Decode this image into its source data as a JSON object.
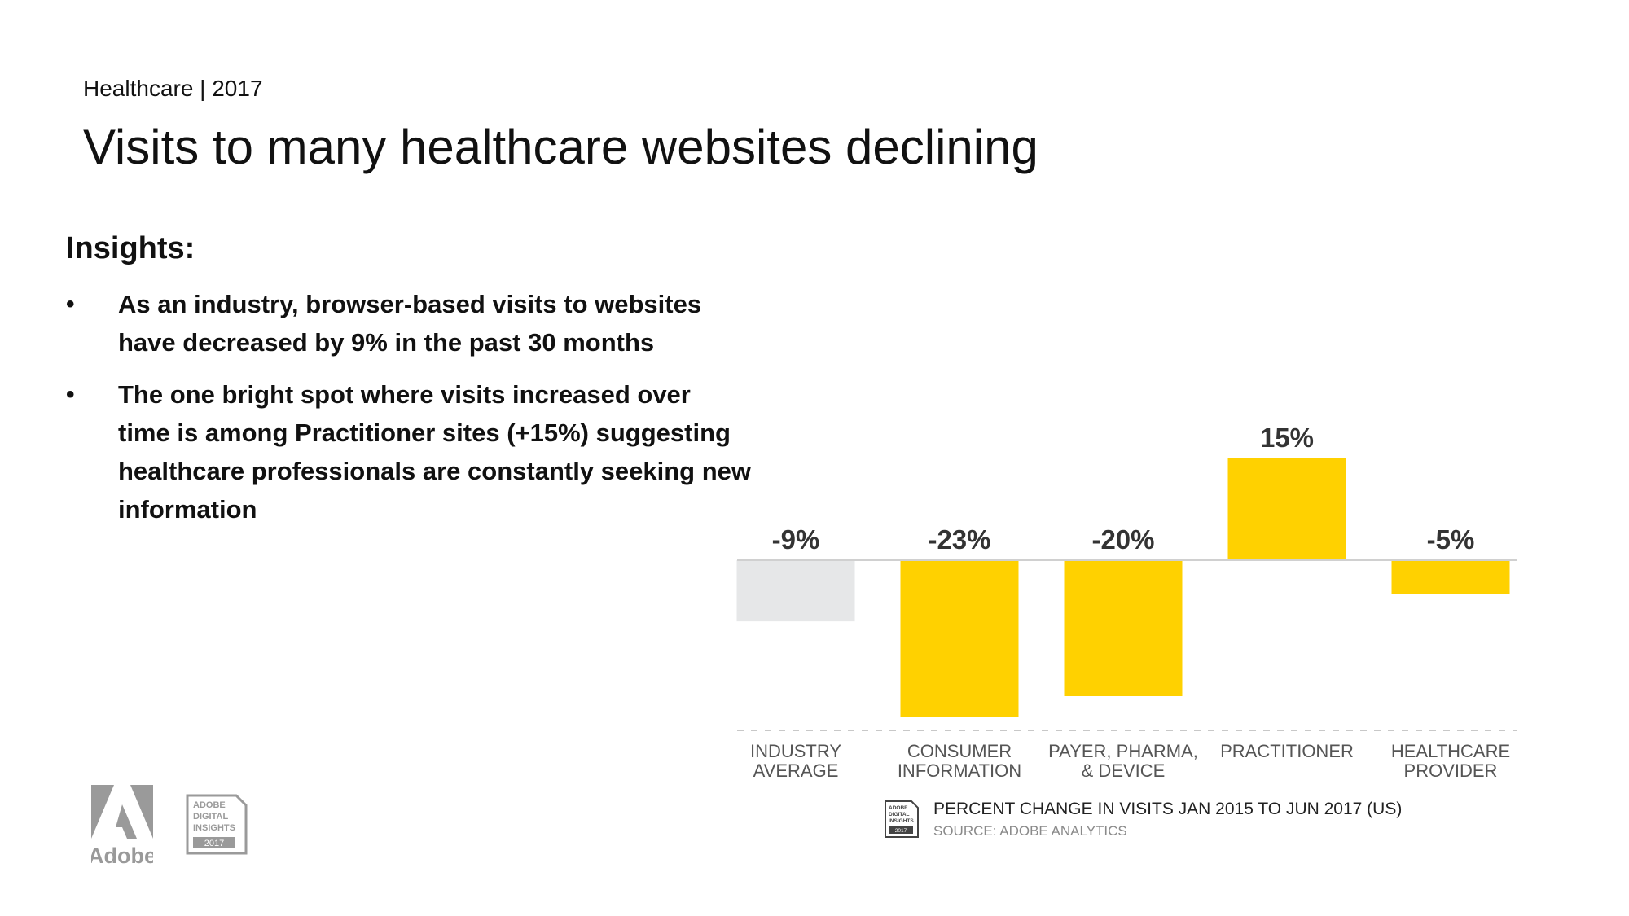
{
  "header": {
    "kicker": "Healthcare | 2017",
    "title": "Visits to many healthcare websites declining"
  },
  "insights": {
    "heading": "Insights:",
    "bullet_glyph": "•",
    "items": [
      {
        "lines": [
          "As an industry, browser-based visits to websites",
          "have decreased by 9% in the past 30 months"
        ]
      },
      {
        "lines": [
          "The one bright spot where visits increased over",
          "time is among Practitioner sites (+15%) suggesting",
          "healthcare professionals are constantly seeking new",
          "information"
        ]
      }
    ]
  },
  "chart_data": {
    "type": "bar",
    "title": "PERCENT CHANGE IN VISITS JAN 2015 TO JUN 2017 (US)",
    "source": "SOURCE: ADOBE ANALYTICS",
    "unit": "%",
    "ylim": [
      -25,
      15
    ],
    "grid": false,
    "categories": [
      {
        "lines": [
          "INDUSTRY",
          "AVERAGE"
        ]
      },
      {
        "lines": [
          "CONSUMER",
          "INFORMATION"
        ]
      },
      {
        "lines": [
          "PAYER, PHARMA,",
          "& DEVICE"
        ]
      },
      {
        "lines": [
          "PRACTITIONER"
        ]
      },
      {
        "lines": [
          "HEALTHCARE",
          "PROVIDER"
        ]
      }
    ],
    "values": [
      -9,
      -23,
      -20,
      15,
      -5
    ],
    "data_labels": [
      "-9%",
      "-23%",
      "-20%",
      "15%",
      "-5%"
    ],
    "bar_colors": [
      "#e6e7e8",
      "#ffd100",
      "#ffd100",
      "#ffd100",
      "#ffd100"
    ],
    "colors": {
      "zero_line": "#d0d0d0",
      "axis_dashes": "#c8c8c8",
      "category_text": "#555555",
      "value_text": "#333333"
    }
  },
  "footer": {
    "badge_lines": [
      "ADOBE",
      "DIGITAL",
      "INSIGHTS",
      "2017"
    ],
    "logo_text": "Adobe"
  }
}
